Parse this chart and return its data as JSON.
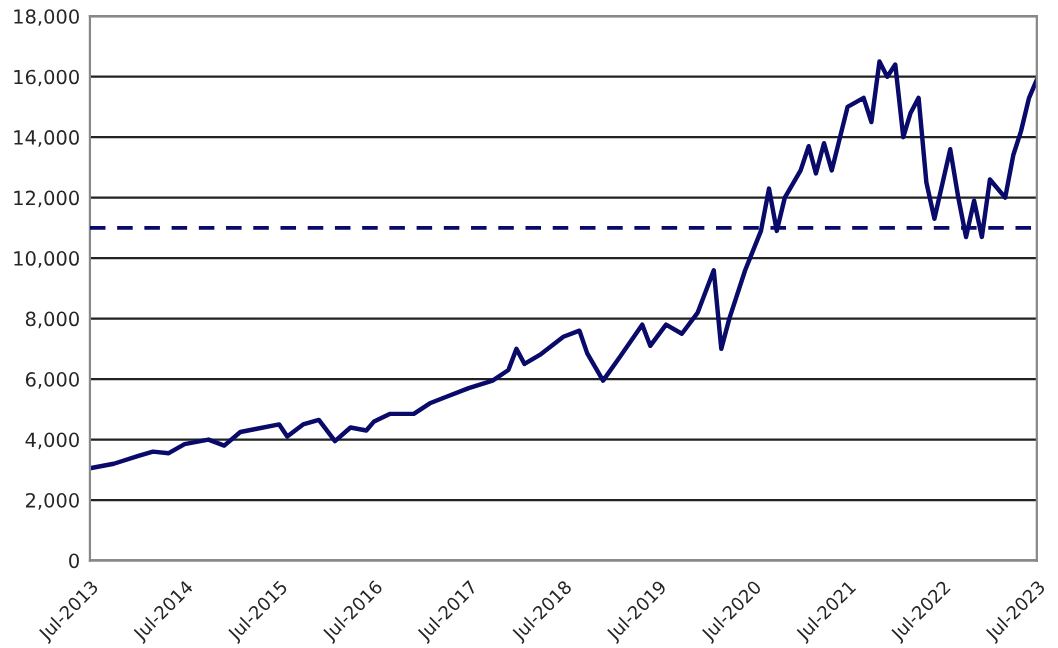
{
  "chart_data": {
    "type": "line",
    "x": [
      "2013-07",
      "2013-10",
      "2014-01",
      "2014-03",
      "2014-05",
      "2014-07",
      "2014-10",
      "2014-12",
      "2015-02",
      "2015-04",
      "2015-07",
      "2015-08",
      "2015-10",
      "2015-12",
      "2016-02",
      "2016-04",
      "2016-06",
      "2016-07",
      "2016-09",
      "2016-12",
      "2017-02",
      "2017-04",
      "2017-07",
      "2017-10",
      "2017-12",
      "2018-01",
      "2018-02",
      "2018-04",
      "2018-07",
      "2018-09",
      "2018-10",
      "2018-12",
      "2019-02",
      "2019-05",
      "2019-06",
      "2019-08",
      "2019-10",
      "2019-12",
      "2020-02",
      "2020-03",
      "2020-04",
      "2020-06",
      "2020-08",
      "2020-09",
      "2020-10",
      "2020-11",
      "2021-01",
      "2021-02",
      "2021-03",
      "2021-04",
      "2021-05",
      "2021-07",
      "2021-09",
      "2021-10",
      "2021-11",
      "2021-12",
      "2022-01",
      "2022-02",
      "2022-03",
      "2022-04",
      "2022-05",
      "2022-06",
      "2022-08",
      "2022-09",
      "2022-10",
      "2022-11",
      "2022-12",
      "2023-01",
      "2023-03",
      "2023-04",
      "2023-05",
      "2023-06",
      "2023-07"
    ],
    "series": [
      {
        "color": "#0a0a6b",
        "values": [
          3050,
          3200,
          3450,
          3600,
          3550,
          3850,
          4000,
          3800,
          4250,
          4350,
          4500,
          4100,
          4500,
          4650,
          3950,
          4400,
          4300,
          4600,
          4850,
          4850,
          5200,
          5400,
          5700,
          5950,
          6300,
          7000,
          6500,
          6800,
          7400,
          7600,
          6850,
          5950,
          6700,
          7800,
          7100,
          7800,
          7500,
          8200,
          9600,
          7000,
          8000,
          9600,
          10900,
          12300,
          10900,
          12000,
          12900,
          13700,
          12800,
          13800,
          12900,
          15000,
          15300,
          14500,
          16500,
          16000,
          16400,
          14000,
          14800,
          15300,
          12500,
          11300,
          13600,
          12000,
          10700,
          11900,
          10700,
          12600,
          12000,
          13400,
          14200,
          15300,
          15900
        ]
      }
    ],
    "xlim": [
      "2013-07",
      "2023-07"
    ],
    "xticks": [
      {
        "value": "2013-07",
        "label": "Jul-2013"
      },
      {
        "value": "2014-07",
        "label": "Jul-2014"
      },
      {
        "value": "2015-07",
        "label": "Jul-2015"
      },
      {
        "value": "2016-07",
        "label": "Jul-2016"
      },
      {
        "value": "2017-07",
        "label": "Jul-2017"
      },
      {
        "value": "2018-07",
        "label": "Jul-2018"
      },
      {
        "value": "2019-07",
        "label": "Jul-2019"
      },
      {
        "value": "2020-07",
        "label": "Jul-2020"
      },
      {
        "value": "2021-07",
        "label": "Jul-2021"
      },
      {
        "value": "2022-07",
        "label": "Jul-2022"
      },
      {
        "value": "2023-07",
        "label": "Jul-2023"
      }
    ],
    "ylim": [
      0,
      18000
    ],
    "yticks": [
      {
        "value": 0,
        "label": "0"
      },
      {
        "value": 2000,
        "label": "2,000"
      },
      {
        "value": 4000,
        "label": "4,000"
      },
      {
        "value": 6000,
        "label": "6,000"
      },
      {
        "value": 8000,
        "label": "8,000"
      },
      {
        "value": 10000,
        "label": "10,000"
      },
      {
        "value": 12000,
        "label": "12,000"
      },
      {
        "value": 14000,
        "label": "14,000"
      },
      {
        "value": 16000,
        "label": "16,000"
      },
      {
        "value": 18000,
        "label": "18,000"
      }
    ],
    "grid": "y",
    "legend": false,
    "marker": "none",
    "line_style": "solid",
    "ref_lines": [
      {
        "axis": "y",
        "value": 11000,
        "label": null,
        "color": "#0a0a6b",
        "line_style": "dashed"
      }
    ]
  }
}
